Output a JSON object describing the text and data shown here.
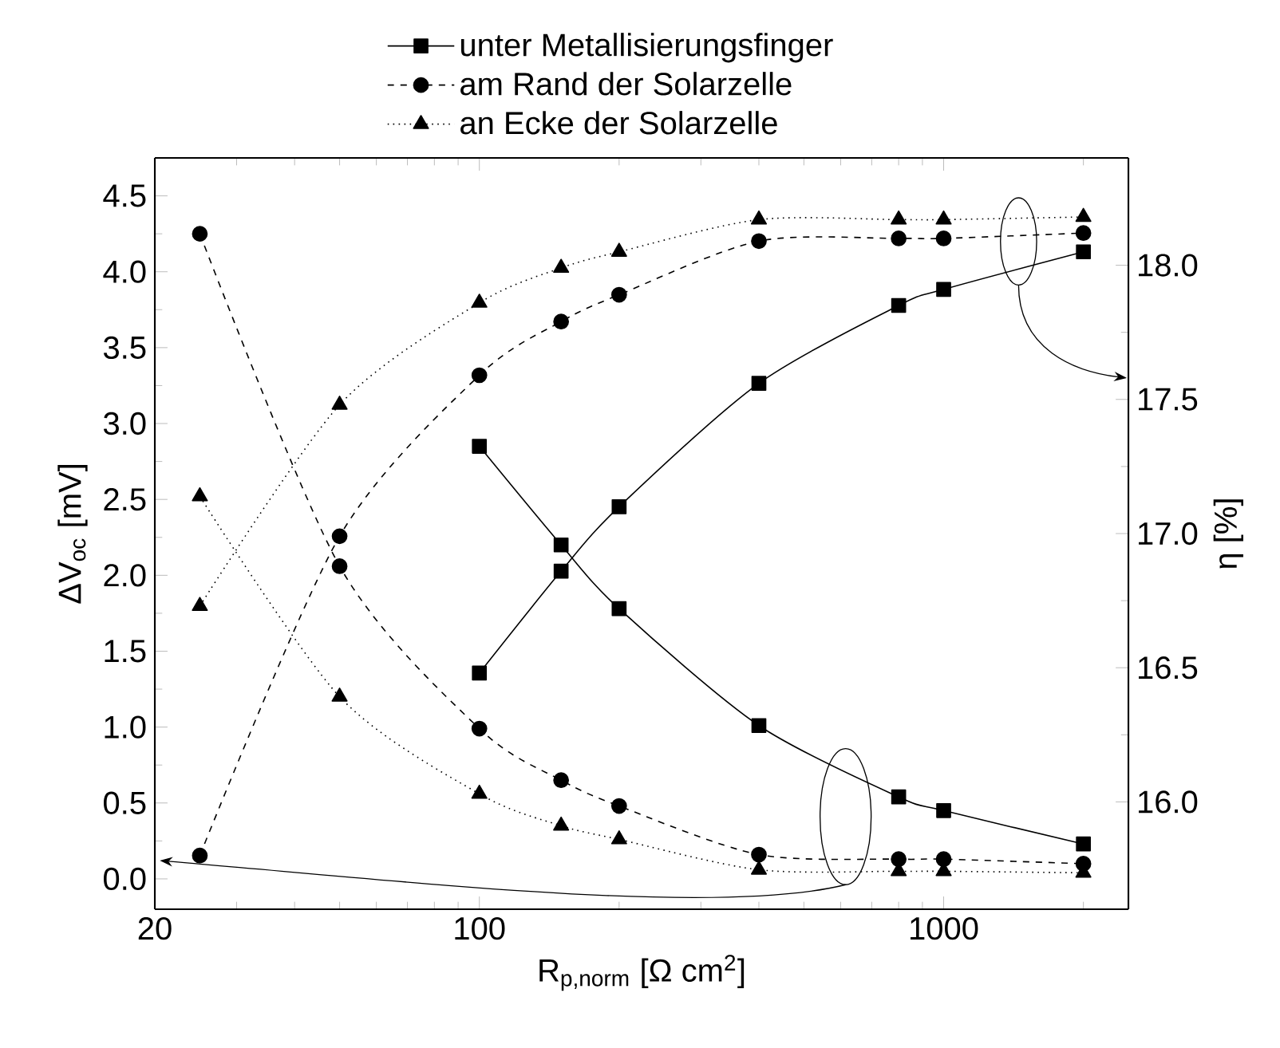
{
  "chart_data": {
    "type": "line",
    "xlabel": "R$_{p,norm}$ [Ω cm$^{2}$]",
    "ylabel": "ΔV$_{oc}$ [mV]",
    "y2label": "η [%]",
    "log": "x",
    "legend": "top",
    "xlim": [
      20,
      2500
    ],
    "xticks": [
      20,
      100,
      1000
    ],
    "ylim": [
      -0.2,
      4.75
    ],
    "yticks": [
      {
        "value": 0,
        "label": "0.0"
      },
      {
        "value": 0.5,
        "label": "0.5"
      },
      {
        "value": 1,
        "label": "1.0"
      },
      {
        "value": 1.5,
        "label": "1.5"
      },
      {
        "value": 2,
        "label": "2.0"
      },
      {
        "value": 2.5,
        "label": "2.5"
      },
      {
        "value": 3,
        "label": "3.0"
      },
      {
        "value": 3.5,
        "label": "3.5"
      },
      {
        "value": 4,
        "label": "4.0"
      },
      {
        "value": 4.5,
        "label": "4.5"
      }
    ],
    "y2lim": [
      15.6,
      18.4
    ],
    "y2ticks": [
      {
        "value": 16,
        "label": "16.0"
      },
      {
        "value": 16.5,
        "label": "16.5"
      },
      {
        "value": 17,
        "label": "17.0"
      },
      {
        "value": 17.5,
        "label": "17.5"
      },
      {
        "value": 18,
        "label": "18.0"
      }
    ],
    "series": [
      {
        "name": "unter Metallisierungsfinger",
        "color": "#000000",
        "marker": "square",
        "line_style": "solid",
        "x": [
          100,
          150,
          200,
          400,
          800,
          1000,
          2000
        ],
        "values": [
          2.85,
          2.2,
          1.78,
          1.01,
          0.54,
          0.45,
          0.23
        ]
      },
      {
        "name": "am Rand der Solarzelle",
        "color": "#000000",
        "marker": "circle",
        "line_style": "dashed",
        "x": [
          25,
          50,
          100,
          150,
          200,
          400,
          800,
          1000,
          2000
        ],
        "values": [
          4.25,
          2.06,
          0.99,
          0.65,
          0.48,
          0.16,
          0.13,
          0.13,
          0.1
        ]
      },
      {
        "name": "an Ecke der Solarzelle",
        "color": "#000000",
        "marker": "triangle",
        "line_style": "dotted",
        "x": [
          25,
          50,
          100,
          150,
          200,
          400,
          800,
          1000,
          2000
        ],
        "values": [
          2.52,
          1.2,
          0.56,
          0.35,
          0.26,
          0.06,
          0.05,
          0.05,
          0.04
        ]
      },
      {
        "axis": "y2",
        "color": "#000000",
        "marker": "square",
        "line_style": "solid",
        "x": [
          100,
          150,
          200,
          400,
          800,
          1000,
          2000
        ],
        "values": [
          16.48,
          16.86,
          17.1,
          17.56,
          17.85,
          17.91,
          18.05
        ]
      },
      {
        "axis": "y2",
        "color": "#000000",
        "marker": "circle",
        "line_style": "dashed",
        "x": [
          25,
          50,
          100,
          150,
          200,
          400,
          800,
          1000,
          2000
        ],
        "values": [
          15.8,
          16.99,
          17.59,
          17.79,
          17.89,
          18.09,
          18.1,
          18.1,
          18.12
        ]
      },
      {
        "axis": "y2",
        "color": "#000000",
        "marker": "triangle",
        "line_style": "dotted",
        "x": [
          25,
          50,
          100,
          150,
          200,
          400,
          800,
          1000,
          2000
        ],
        "values": [
          16.73,
          17.48,
          17.86,
          17.99,
          18.05,
          18.17,
          18.17,
          18.17,
          18.18
        ]
      }
    ]
  }
}
